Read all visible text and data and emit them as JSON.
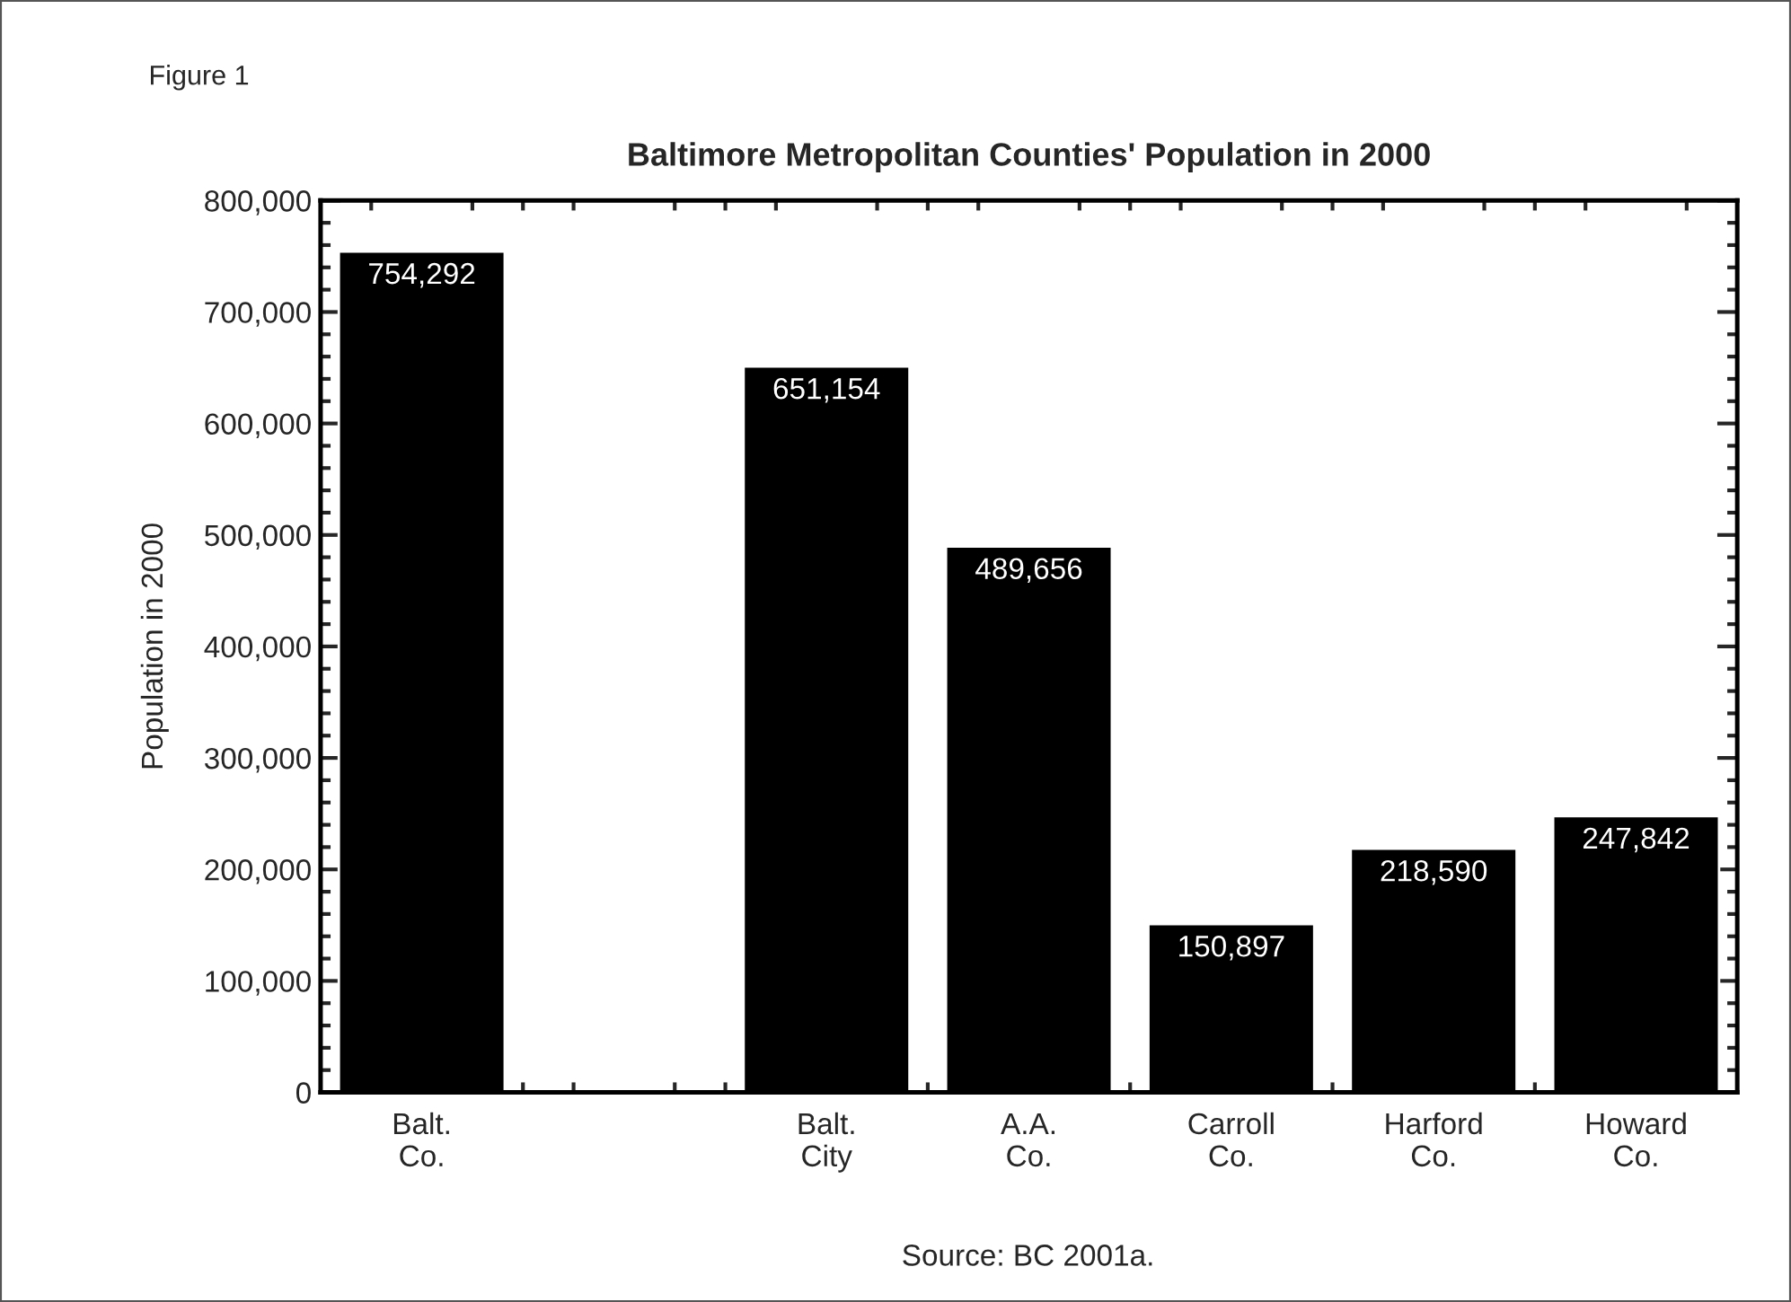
{
  "chart_data": {
    "type": "bar",
    "title": "Baltimore Metropolitan Counties' Population in 2000",
    "ylabel": "Population in 2000",
    "annotations": [
      "Figure 1",
      "Source: BC 2001a."
    ],
    "categories": [
      "Balt.\nCo.",
      null,
      "Balt.\nCity",
      "A.A.\nCo.",
      "Carroll\nCo.",
      "Harford\nCo.",
      "Howard\nCo."
    ],
    "values": [
      754292,
      null,
      651154,
      489656,
      150897,
      218590,
      247842
    ],
    "value_labels": [
      "754,292",
      null,
      "651,154",
      "489,656",
      "150,897",
      "218,590",
      "247,842"
    ],
    "color": "#000000",
    "grid": false,
    "legend": false,
    "ylim": [
      0,
      800000
    ],
    "yticks": [
      {
        "value": 0,
        "label": "0"
      },
      {
        "value": 100000,
        "label": "100,000"
      },
      {
        "value": 200000,
        "label": "200,000"
      },
      {
        "value": 300000,
        "label": "300,000"
      },
      {
        "value": 400000,
        "label": "400,000"
      },
      {
        "value": 500000,
        "label": "500,000"
      },
      {
        "value": 600000,
        "label": "600,000"
      },
      {
        "value": 700000,
        "label": "700,000"
      },
      {
        "value": 800000,
        "label": "800,000"
      }
    ]
  }
}
